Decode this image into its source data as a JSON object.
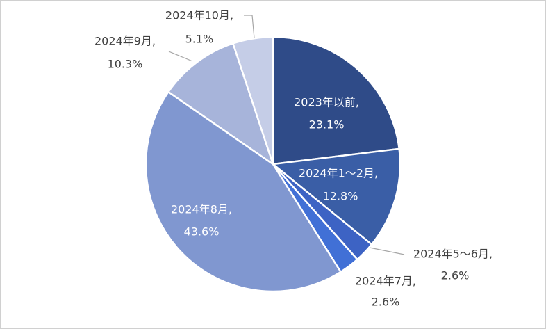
{
  "chart_data": {
    "type": "pie",
    "categories": [
      "2023年以前,",
      "2024年1～2月,",
      "2024年5～6月,",
      "2024年7月,",
      "2024年8月,",
      "2024年9月,",
      "2024年10月,"
    ],
    "values": [
      23.1,
      12.8,
      2.6,
      2.6,
      43.6,
      10.3,
      5.1
    ],
    "value_labels": [
      "23.1%",
      "12.8%",
      "2.6%",
      "2.6%",
      "43.6%",
      "10.3%",
      "5.1%"
    ],
    "colors": [
      "#2F4B88",
      "#3A5EA6",
      "#3D63C4",
      "#4170D6",
      "#8097D0",
      "#A7B4DA",
      "#C5CDE7"
    ]
  }
}
